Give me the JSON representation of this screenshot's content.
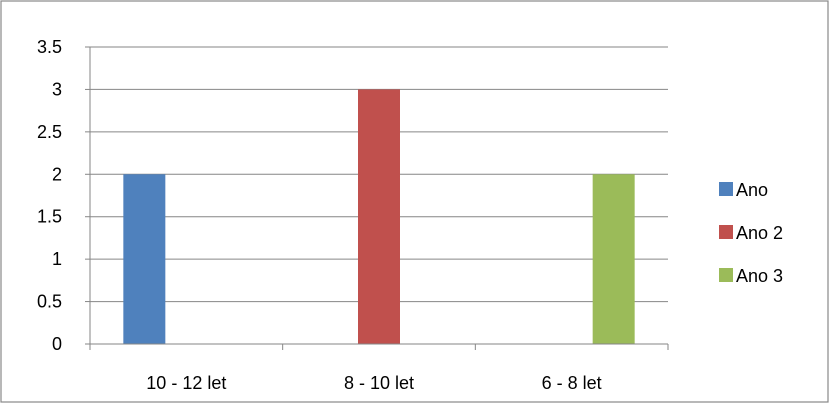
{
  "chart_data": {
    "type": "bar",
    "title": "",
    "xlabel": "",
    "ylabel": "",
    "categories": [
      "10 - 12 let",
      "8 - 10 let",
      "6 - 8 let"
    ],
    "series": [
      {
        "name": "Ano",
        "color": "#4F81BD",
        "values": [
          2,
          null,
          null
        ]
      },
      {
        "name": "Ano 2",
        "color": "#C0504D",
        "values": [
          null,
          3,
          null
        ]
      },
      {
        "name": "Ano 3",
        "color": "#9BBB59",
        "values": [
          null,
          null,
          2
        ]
      }
    ],
    "ylim": [
      0,
      3.5
    ],
    "yticks": [
      "0",
      "0.5",
      "1",
      "1.5",
      "2",
      "2.5",
      "3",
      "3.5"
    ],
    "grid": true,
    "legend": "right"
  }
}
